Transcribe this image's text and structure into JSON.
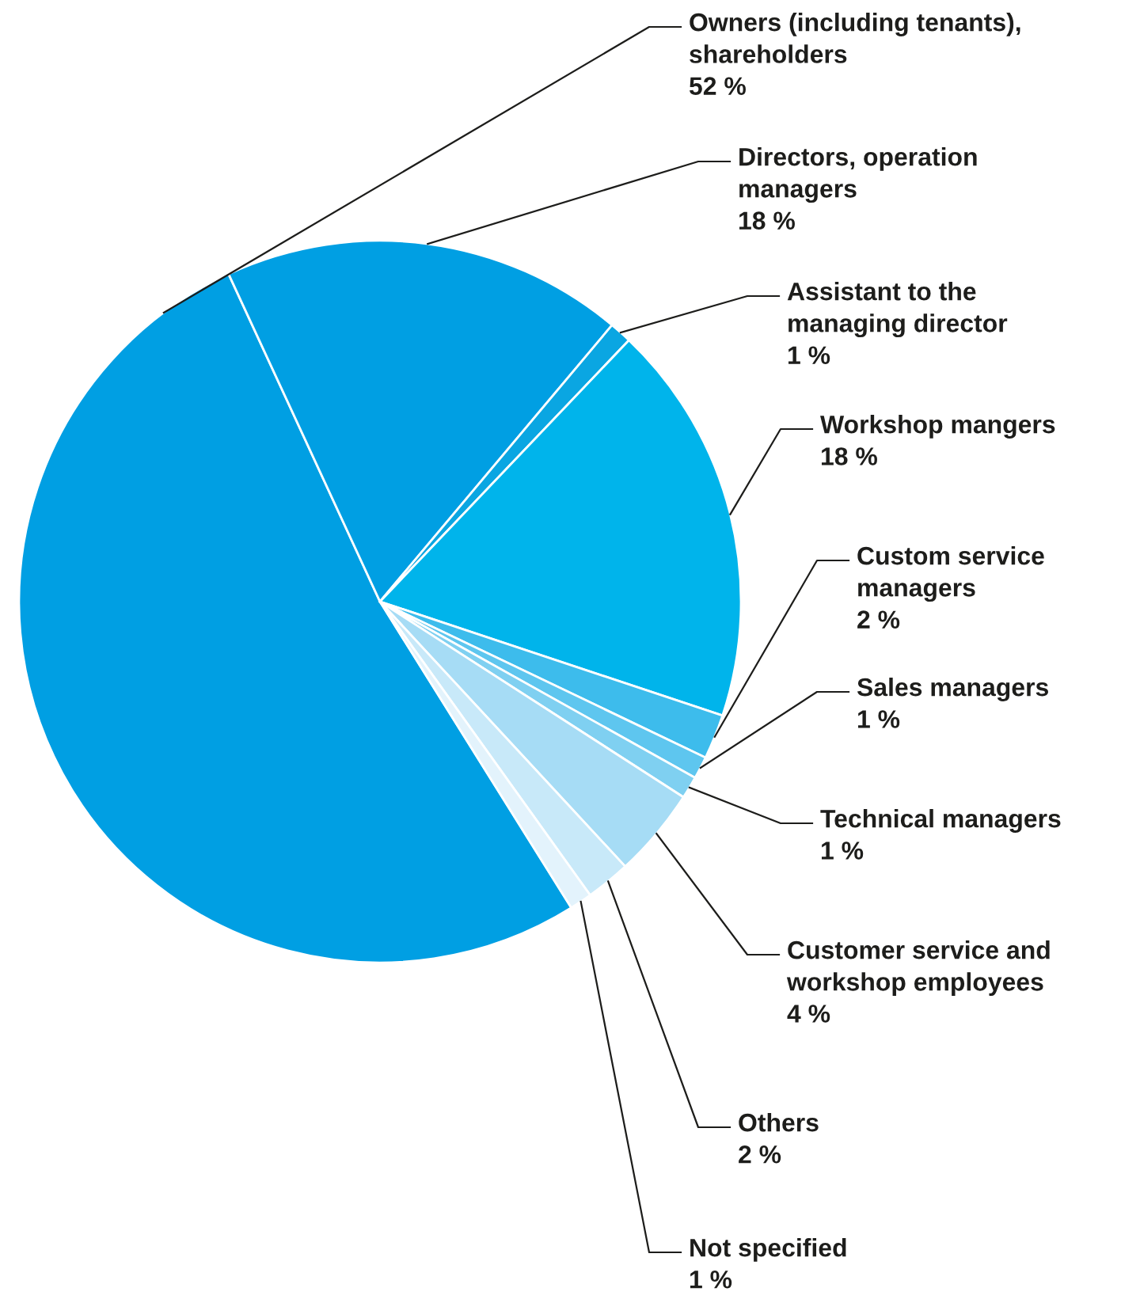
{
  "chart_data": {
    "type": "pie",
    "categories": [
      "Owners (including tenants), shareholders",
      "Directors, operation managers",
      "Assistant to the managing director",
      "Workshop mangers",
      "Custom service managers",
      "Sales managers",
      "Technical managers",
      "Customer service and workshop employees",
      "Others",
      "Not specified"
    ],
    "values": [
      52,
      18,
      1,
      18,
      2,
      1,
      1,
      4,
      2,
      1
    ],
    "colors": [
      "#009fe3",
      "#009fe3",
      "#0aa6e2",
      "#00b4eb",
      "#3dbcec",
      "#5ec6ef",
      "#7fd0f1",
      "#a6dcf5",
      "#c8e9f9",
      "#e3f3fc"
    ],
    "value_labels": [
      "52 %",
      "18 %",
      "1 %",
      "18 %",
      "2 %",
      "1 %",
      "1 %",
      "4 %",
      "2 %",
      "1 %"
    ]
  }
}
